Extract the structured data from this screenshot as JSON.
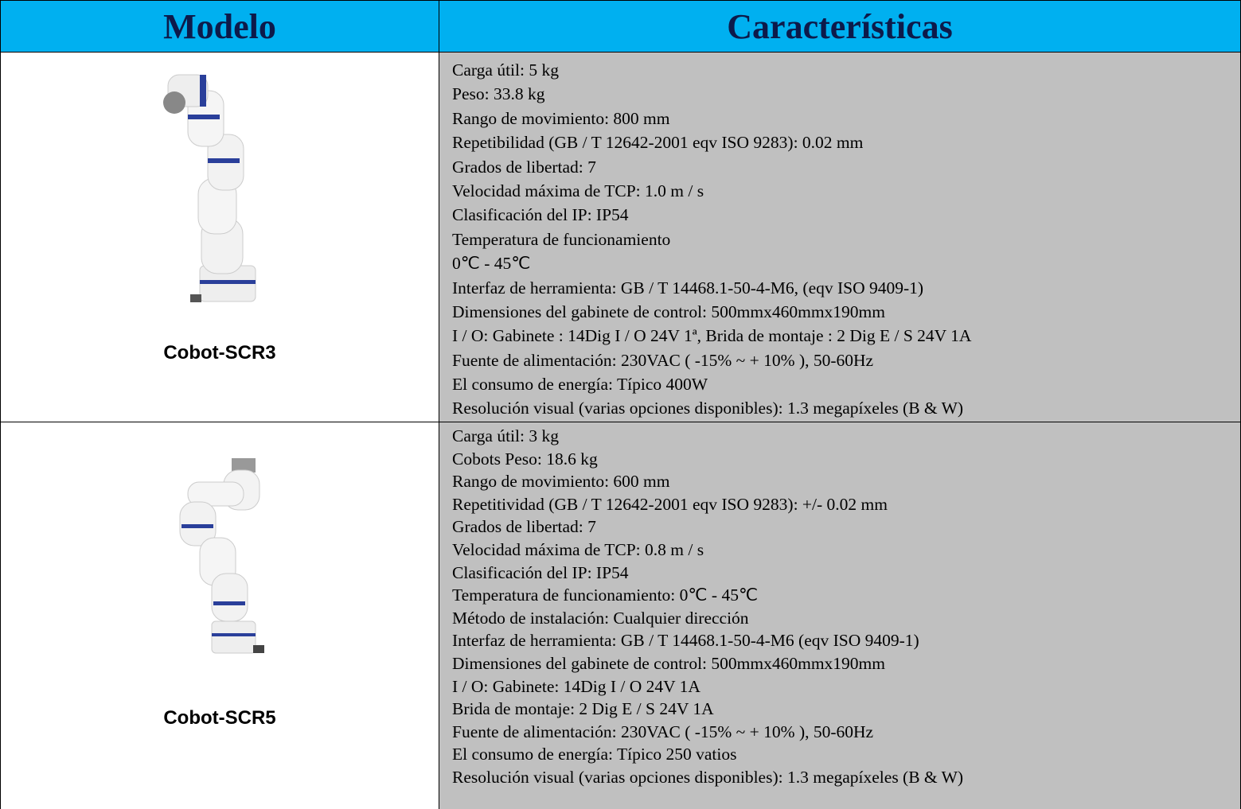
{
  "table": {
    "header": [
      "Modelo",
      "Características"
    ],
    "rows": [
      {
        "model": "Cobot-SCR3",
        "lines": [
          "Carga útil: 5 kg",
          "Peso: 33.8 kg",
          "Rango de movimiento: 800 mm",
          "Repetibilidad (GB / T 12642-2001 eqv ISO 9283): 0.02 mm",
          "Grados de libertad: 7",
          "Velocidad máxima de TCP: 1.0 m / s",
          "Clasificación del IP: IP54",
          "Temperatura de funcionamiento",
          "0℃ - 45℃",
          "Interfaz de herramienta: GB / T 14468.1-50-4-M6, (eqv ISO 9409-1)",
          "Dimensiones del gabinete de control: 500mmx460mmx190mm",
          "I / O: Gabinete : 14Dig I / O 24V 1ª, Brida de montaje : 2 Dig E / S 24V 1A",
          "Fuente de alimentación: 230VAC ( -15% ~ + 10% ), 50-60Hz",
          "El consumo de energía: Típico 400W",
          "Resolución visual (varias opciones disponibles): 1.3 megapíxeles (B & W)"
        ]
      },
      {
        "model": "Cobot-SCR5",
        "lines": [
          "Carga útil: 3 kg",
          "Cobots Peso: 18.6 kg",
          "Rango de movimiento: 600 mm",
          "Repetitividad (GB / T 12642-2001 eqv ISO 9283): +/- 0.02 mm",
          "Grados de libertad: 7",
          "Velocidad máxima de TCP: 0.8 m / s",
          "Clasificación del IP: IP54",
          "Temperatura de funcionamiento: 0℃ - 45℃",
          "Método de instalación: Cualquier dirección",
          "Interfaz de herramienta: GB / T 14468.1-50-4-M6 (eqv ISO 9409-1)",
          "Dimensiones del gabinete de control: 500mmx460mmx190mm",
          "I / O: Gabinete: 14Dig I / O 24V 1A",
          "Brida de montaje: 2 Dig E / S 24V 1A",
          "Fuente de alimentación: 230VAC ( -15% ~ + 10% ), 50-60Hz",
          "El consumo de energía: Típico 250 vatios",
          "Resolución visual (varias opciones disponibles): 1.3 megapíxeles (B & W)"
        ]
      }
    ]
  }
}
